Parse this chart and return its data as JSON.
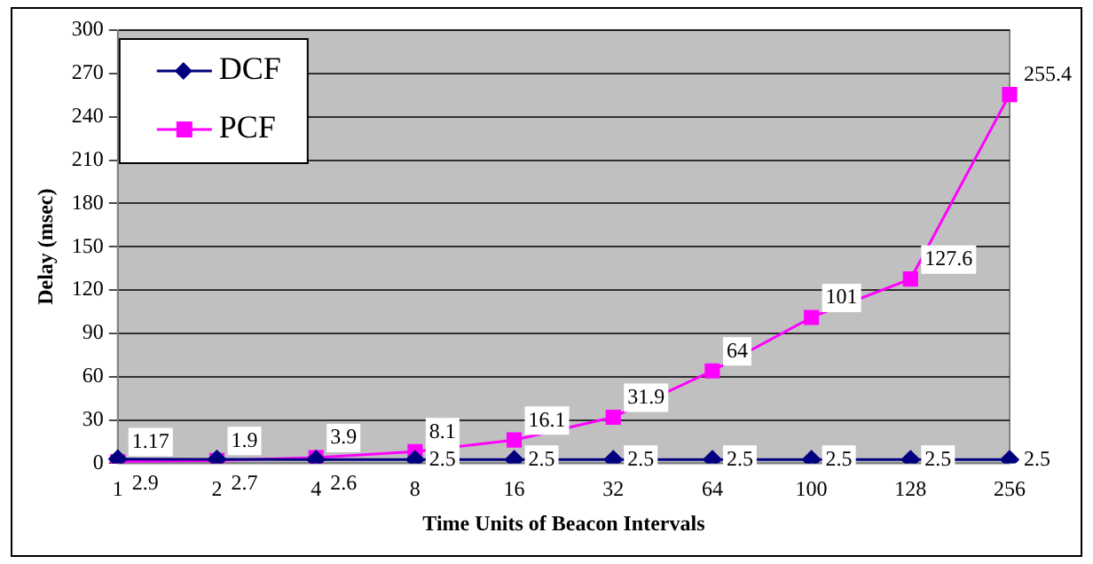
{
  "chart_data": {
    "type": "line",
    "xlabel": "Time Units of Beacon Intervals",
    "ylabel": "Delay (msec)",
    "categories": [
      "1",
      "2",
      "4",
      "8",
      "16",
      "32",
      "64",
      "100",
      "128",
      "256"
    ],
    "series": [
      {
        "name": "DCF",
        "color": "#000080",
        "marker": "diamond",
        "values": [
          2.9,
          2.7,
          2.6,
          2.5,
          2.5,
          2.5,
          2.5,
          2.5,
          2.5,
          2.5
        ]
      },
      {
        "name": "PCF",
        "color": "#ff00ff",
        "marker": "square",
        "values": [
          1.17,
          1.9,
          3.9,
          8.1,
          16.1,
          31.9,
          64,
          101,
          127.6,
          255.4
        ]
      }
    ],
    "ylim": [
      0,
      300
    ],
    "yticks": [
      0,
      30,
      60,
      90,
      120,
      150,
      180,
      210,
      240,
      270,
      300
    ],
    "grid": "y",
    "legend": "top left",
    "data_labels": true
  }
}
